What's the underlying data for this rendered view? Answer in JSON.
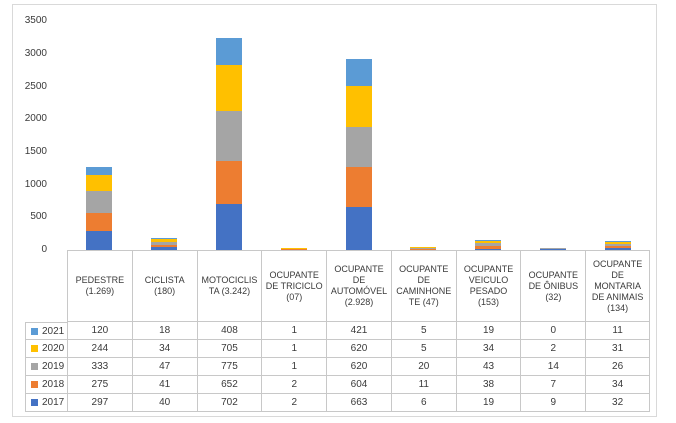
{
  "chart_data": {
    "type": "bar",
    "stacked": true,
    "grid": false,
    "legend_position": "data-table-left",
    "categories": [
      "PEDESTRE (1.269)",
      "CICLISTA (180)",
      "MOTOCICLISTA (3.242)",
      "OCUPANTE DE TRICICLO (07)",
      "OCUPANTE DE AUTOMÓVEL (2.928)",
      "OCUPANTE DE CAMINHONETE (47)",
      "OCUPANTE VEICULO PESADO (153)",
      "OCUPANTE DE ÔNIBUS (32)",
      "OCUPANTE DE MONTARIA DE ANIMAIS (134)"
    ],
    "series": [
      {
        "name": "2021",
        "color": "#5B9BD5",
        "values": [
          120,
          18,
          408,
          1,
          421,
          5,
          19,
          0,
          11
        ]
      },
      {
        "name": "2020",
        "color": "#FFC000",
        "values": [
          244,
          34,
          705,
          1,
          620,
          5,
          34,
          2,
          31
        ]
      },
      {
        "name": "2019",
        "color": "#A5A5A5",
        "values": [
          333,
          47,
          775,
          1,
          620,
          20,
          43,
          14,
          26
        ]
      },
      {
        "name": "2018",
        "color": "#ED7D31",
        "values": [
          275,
          41,
          652,
          2,
          604,
          11,
          38,
          7,
          34
        ]
      },
      {
        "name": "2017",
        "color": "#4472C4",
        "values": [
          297,
          40,
          702,
          2,
          663,
          6,
          19,
          9,
          32
        ]
      }
    ],
    "y_axis": {
      "min": 0,
      "max": 3500,
      "step": 500,
      "ticks": [
        "0",
        "500",
        "1000",
        "1500",
        "2000",
        "2500",
        "3000",
        "3500"
      ]
    },
    "xlabel": "",
    "ylabel": ""
  },
  "colors": {
    "frame_border": "#d9d9d9",
    "table_border": "#c8c8c8",
    "text": "#3a3a3a"
  }
}
